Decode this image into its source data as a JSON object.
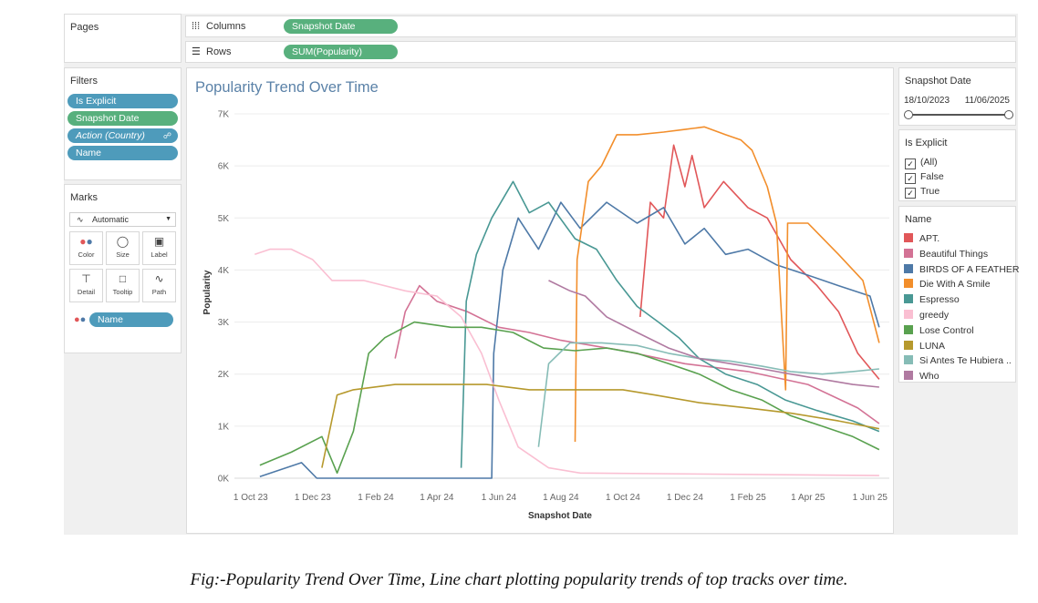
{
  "shelves": {
    "pages_title": "Pages",
    "columns_label": "Columns",
    "columns_pill": "Snapshot Date",
    "rows_label": "Rows",
    "rows_pill": "SUM(Popularity)"
  },
  "filters": {
    "title": "Filters",
    "items": [
      "Is Explicit",
      "Snapshot Date",
      "Action (Country)",
      "Name"
    ]
  },
  "marks": {
    "title": "Marks",
    "type": "Automatic",
    "buttons": [
      "Color",
      "Size",
      "Label",
      "Detail",
      "Tooltip",
      "Path"
    ],
    "field_pill": "Name"
  },
  "date_filter": {
    "title": "Snapshot Date",
    "start": "18/10/2023",
    "end": "11/06/2025"
  },
  "explicit_filter": {
    "title": "Is Explicit",
    "options": [
      "(All)",
      "False",
      "True"
    ]
  },
  "legend": {
    "title": "Name",
    "items": [
      {
        "name": "APT.",
        "color": "#e15759"
      },
      {
        "name": "Beautiful Things",
        "color": "#d37295"
      },
      {
        "name": "BIRDS OF A FEATHER",
        "color": "#4e79a7"
      },
      {
        "name": "Die With A Smile",
        "color": "#f28e2b"
      },
      {
        "name": "Espresso",
        "color": "#499894"
      },
      {
        "name": "greedy",
        "color": "#fabfd2"
      },
      {
        "name": "Lose Control",
        "color": "#59a14f"
      },
      {
        "name": "LUNA",
        "color": "#b6992d"
      },
      {
        "name": "Si Antes Te Hubiera ..",
        "color": "#86bcb6"
      },
      {
        "name": "Who",
        "color": "#b07aa1"
      }
    ]
  },
  "caption": "Fig:-Popularity Trend Over Time, Line chart plotting popularity trends of top tracks over time.",
  "chart_data": {
    "type": "line",
    "title": "Popularity Trend Over Time",
    "xlabel": "Snapshot Date",
    "ylabel": "Popularity",
    "x_ticks": [
      "1 Oct 23",
      "1 Dec 23",
      "1 Feb 24",
      "1 Apr 24",
      "1 Jun 24",
      "1 Aug 24",
      "1 Oct 24",
      "1 Dec 24",
      "1 Feb 25",
      "1 Apr 25",
      "1 Jun 25"
    ],
    "y_ticks": [
      "0K",
      "1K",
      "2K",
      "3K",
      "4K",
      "5K",
      "6K",
      "7K"
    ],
    "ylim": [
      0,
      7000
    ],
    "xlim": [
      "2023-09-15",
      "2025-06-20"
    ],
    "grid": true,
    "series": [
      {
        "name": "APT.",
        "points": [
          [
            "2024-10-18",
            3100
          ],
          [
            "2024-10-28",
            5300
          ],
          [
            "2024-11-10",
            5000
          ],
          [
            "2024-11-20",
            6400
          ],
          [
            "2024-12-01",
            5600
          ],
          [
            "2024-12-08",
            6200
          ],
          [
            "2024-12-20",
            5200
          ],
          [
            "2025-01-08",
            5700
          ],
          [
            "2025-02-01",
            5200
          ],
          [
            "2025-02-20",
            5000
          ],
          [
            "2025-03-15",
            4200
          ],
          [
            "2025-04-10",
            3700
          ],
          [
            "2025-05-01",
            3200
          ],
          [
            "2025-05-20",
            2400
          ],
          [
            "2025-06-10",
            1900
          ]
        ]
      },
      {
        "name": "Beautiful Things",
        "points": [
          [
            "2024-02-20",
            2300
          ],
          [
            "2024-03-01",
            3200
          ],
          [
            "2024-03-15",
            3700
          ],
          [
            "2024-04-01",
            3400
          ],
          [
            "2024-05-01",
            3200
          ],
          [
            "2024-06-01",
            2900
          ],
          [
            "2024-07-01",
            2800
          ],
          [
            "2024-08-01",
            2650
          ],
          [
            "2024-10-01",
            2450
          ],
          [
            "2024-12-01",
            2200
          ],
          [
            "2025-02-01",
            2050
          ],
          [
            "2025-04-01",
            1800
          ],
          [
            "2025-05-20",
            1350
          ],
          [
            "2025-06-10",
            1050
          ]
        ]
      },
      {
        "name": "BIRDS OF A FEATHER",
        "points": [
          [
            "2023-10-10",
            30
          ],
          [
            "2023-11-20",
            300
          ],
          [
            "2023-12-05",
            0
          ],
          [
            "2024-04-15",
            0
          ],
          [
            "2024-05-25",
            0
          ],
          [
            "2024-05-27",
            2400
          ],
          [
            "2024-06-05",
            4000
          ],
          [
            "2024-06-20",
            5000
          ],
          [
            "2024-07-10",
            4400
          ],
          [
            "2024-08-01",
            5300
          ],
          [
            "2024-08-20",
            4800
          ],
          [
            "2024-09-15",
            5300
          ],
          [
            "2024-10-15",
            4900
          ],
          [
            "2024-11-10",
            5200
          ],
          [
            "2024-12-01",
            4500
          ],
          [
            "2024-12-20",
            4800
          ],
          [
            "2025-01-10",
            4300
          ],
          [
            "2025-02-01",
            4400
          ],
          [
            "2025-03-01",
            4100
          ],
          [
            "2025-04-01",
            3900
          ],
          [
            "2025-05-01",
            3700
          ],
          [
            "2025-06-01",
            3500
          ],
          [
            "2025-06-10",
            2900
          ]
        ]
      },
      {
        "name": "Die With A Smile",
        "points": [
          [
            "2024-08-15",
            700
          ],
          [
            "2024-08-17",
            4200
          ],
          [
            "2024-08-28",
            5700
          ],
          [
            "2024-09-10",
            6000
          ],
          [
            "2024-09-25",
            6600
          ],
          [
            "2024-10-15",
            6600
          ],
          [
            "2024-11-10",
            6650
          ],
          [
            "2024-12-01",
            6700
          ],
          [
            "2024-12-20",
            6750
          ],
          [
            "2025-01-10",
            6600
          ],
          [
            "2025-01-25",
            6500
          ],
          [
            "2025-02-05",
            6300
          ],
          [
            "2025-02-20",
            5600
          ],
          [
            "2025-03-01",
            4900
          ],
          [
            "2025-03-10",
            1700
          ],
          [
            "2025-03-12",
            4900
          ],
          [
            "2025-04-01",
            4900
          ],
          [
            "2025-05-01",
            4300
          ],
          [
            "2025-05-25",
            3800
          ],
          [
            "2025-06-10",
            2600
          ]
        ]
      },
      {
        "name": "Espresso",
        "points": [
          [
            "2024-04-25",
            200
          ],
          [
            "2024-04-30",
            3400
          ],
          [
            "2024-05-10",
            4300
          ],
          [
            "2024-05-25",
            5000
          ],
          [
            "2024-06-15",
            5700
          ],
          [
            "2024-07-01",
            5100
          ],
          [
            "2024-07-20",
            5300
          ],
          [
            "2024-08-15",
            4600
          ],
          [
            "2024-09-05",
            4400
          ],
          [
            "2024-09-25",
            3800
          ],
          [
            "2024-10-15",
            3300
          ],
          [
            "2024-11-05",
            3000
          ],
          [
            "2024-11-25",
            2700
          ],
          [
            "2024-12-15",
            2300
          ],
          [
            "2025-01-10",
            2000
          ],
          [
            "2025-02-10",
            1800
          ],
          [
            "2025-03-10",
            1500
          ],
          [
            "2025-04-10",
            1300
          ],
          [
            "2025-05-15",
            1100
          ],
          [
            "2025-06-10",
            900
          ]
        ]
      },
      {
        "name": "greedy",
        "points": [
          [
            "2023-10-05",
            4300
          ],
          [
            "2023-10-20",
            4400
          ],
          [
            "2023-11-10",
            4400
          ],
          [
            "2023-12-01",
            4200
          ],
          [
            "2023-12-20",
            3800
          ],
          [
            "2024-01-20",
            3800
          ],
          [
            "2024-03-01",
            3600
          ],
          [
            "2024-04-01",
            3500
          ],
          [
            "2024-04-25",
            3100
          ],
          [
            "2024-05-15",
            2400
          ],
          [
            "2024-06-01",
            1500
          ],
          [
            "2024-06-20",
            600
          ],
          [
            "2024-07-20",
            200
          ],
          [
            "2024-08-20",
            100
          ],
          [
            "2025-06-10",
            50
          ]
        ]
      },
      {
        "name": "Lose Control",
        "points": [
          [
            "2023-10-10",
            250
          ],
          [
            "2023-11-10",
            500
          ],
          [
            "2023-12-10",
            800
          ],
          [
            "2023-12-25",
            100
          ],
          [
            "2024-01-10",
            900
          ],
          [
            "2024-01-25",
            2400
          ],
          [
            "2024-02-10",
            2700
          ],
          [
            "2024-03-10",
            3000
          ],
          [
            "2024-04-15",
            2900
          ],
          [
            "2024-05-15",
            2900
          ],
          [
            "2024-06-15",
            2800
          ],
          [
            "2024-07-15",
            2500
          ],
          [
            "2024-08-15",
            2450
          ],
          [
            "2024-09-15",
            2500
          ],
          [
            "2024-10-15",
            2400
          ],
          [
            "2024-11-15",
            2200
          ],
          [
            "2024-12-15",
            2000
          ],
          [
            "2025-01-15",
            1700
          ],
          [
            "2025-02-15",
            1500
          ],
          [
            "2025-03-15",
            1200
          ],
          [
            "2025-04-15",
            1000
          ],
          [
            "2025-05-15",
            800
          ],
          [
            "2025-06-10",
            550
          ]
        ]
      },
      {
        "name": "LUNA",
        "points": [
          [
            "2023-12-10",
            200
          ],
          [
            "2023-12-25",
            1600
          ],
          [
            "2024-01-10",
            1700
          ],
          [
            "2024-02-20",
            1800
          ],
          [
            "2024-04-01",
            1800
          ],
          [
            "2024-05-20",
            1800
          ],
          [
            "2024-07-01",
            1700
          ],
          [
            "2024-08-20",
            1700
          ],
          [
            "2024-10-01",
            1700
          ],
          [
            "2024-11-01",
            1600
          ],
          [
            "2024-12-15",
            1450
          ],
          [
            "2025-02-01",
            1350
          ],
          [
            "2025-03-15",
            1250
          ],
          [
            "2025-05-01",
            1100
          ],
          [
            "2025-06-10",
            950
          ]
        ]
      },
      {
        "name": "Si Antes Te Hubiera ..",
        "points": [
          [
            "2024-07-10",
            600
          ],
          [
            "2024-07-20",
            2200
          ],
          [
            "2024-08-10",
            2600
          ],
          [
            "2024-09-10",
            2600
          ],
          [
            "2024-10-15",
            2550
          ],
          [
            "2024-11-15",
            2400
          ],
          [
            "2024-12-15",
            2300
          ],
          [
            "2025-01-15",
            2250
          ],
          [
            "2025-02-15",
            2150
          ],
          [
            "2025-03-15",
            2050
          ],
          [
            "2025-04-15",
            2000
          ],
          [
            "2025-05-15",
            2050
          ],
          [
            "2025-06-10",
            2100
          ]
        ]
      },
      {
        "name": "Who",
        "points": [
          [
            "2024-07-20",
            3800
          ],
          [
            "2024-08-10",
            3600
          ],
          [
            "2024-08-25",
            3500
          ],
          [
            "2024-09-15",
            3100
          ],
          [
            "2024-10-15",
            2800
          ],
          [
            "2024-11-15",
            2500
          ],
          [
            "2024-12-15",
            2300
          ],
          [
            "2025-01-15",
            2200
          ],
          [
            "2025-02-15",
            2100
          ],
          [
            "2025-03-15",
            2000
          ],
          [
            "2025-04-15",
            1900
          ],
          [
            "2025-05-15",
            1800
          ],
          [
            "2025-06-10",
            1750
          ]
        ]
      }
    ]
  }
}
